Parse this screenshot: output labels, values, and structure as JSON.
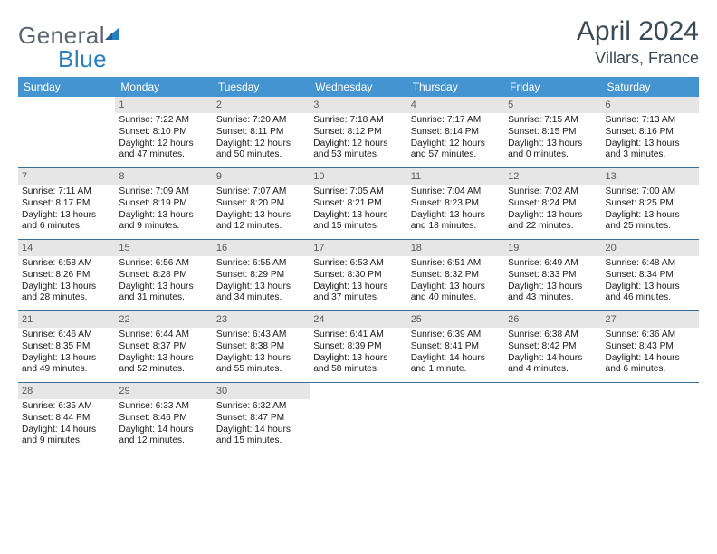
{
  "brand": {
    "word1": "General",
    "word2": "Blue"
  },
  "title": "April 2024",
  "location": "Villars, France",
  "colors": {
    "header_bg": "#4494d1",
    "header_text": "#ffffff",
    "row_border": "#3a6f99",
    "daynum_bg": "#e6e6e6",
    "daynum_text": "#5a5a5a",
    "body_text": "#1a1a1a",
    "title_text": "#3a4a56",
    "logo_gray": "#5a6670",
    "logo_blue": "#2a7fbf"
  },
  "day_headers": [
    "Sunday",
    "Monday",
    "Tuesday",
    "Wednesday",
    "Thursday",
    "Friday",
    "Saturday"
  ],
  "weeks": [
    [
      {
        "day": "",
        "sunrise": "",
        "sunset": "",
        "daylight": ""
      },
      {
        "day": "1",
        "sunrise": "Sunrise: 7:22 AM",
        "sunset": "Sunset: 8:10 PM",
        "daylight": "Daylight: 12 hours and 47 minutes."
      },
      {
        "day": "2",
        "sunrise": "Sunrise: 7:20 AM",
        "sunset": "Sunset: 8:11 PM",
        "daylight": "Daylight: 12 hours and 50 minutes."
      },
      {
        "day": "3",
        "sunrise": "Sunrise: 7:18 AM",
        "sunset": "Sunset: 8:12 PM",
        "daylight": "Daylight: 12 hours and 53 minutes."
      },
      {
        "day": "4",
        "sunrise": "Sunrise: 7:17 AM",
        "sunset": "Sunset: 8:14 PM",
        "daylight": "Daylight: 12 hours and 57 minutes."
      },
      {
        "day": "5",
        "sunrise": "Sunrise: 7:15 AM",
        "sunset": "Sunset: 8:15 PM",
        "daylight": "Daylight: 13 hours and 0 minutes."
      },
      {
        "day": "6",
        "sunrise": "Sunrise: 7:13 AM",
        "sunset": "Sunset: 8:16 PM",
        "daylight": "Daylight: 13 hours and 3 minutes."
      }
    ],
    [
      {
        "day": "7",
        "sunrise": "Sunrise: 7:11 AM",
        "sunset": "Sunset: 8:17 PM",
        "daylight": "Daylight: 13 hours and 6 minutes."
      },
      {
        "day": "8",
        "sunrise": "Sunrise: 7:09 AM",
        "sunset": "Sunset: 8:19 PM",
        "daylight": "Daylight: 13 hours and 9 minutes."
      },
      {
        "day": "9",
        "sunrise": "Sunrise: 7:07 AM",
        "sunset": "Sunset: 8:20 PM",
        "daylight": "Daylight: 13 hours and 12 minutes."
      },
      {
        "day": "10",
        "sunrise": "Sunrise: 7:05 AM",
        "sunset": "Sunset: 8:21 PM",
        "daylight": "Daylight: 13 hours and 15 minutes."
      },
      {
        "day": "11",
        "sunrise": "Sunrise: 7:04 AM",
        "sunset": "Sunset: 8:23 PM",
        "daylight": "Daylight: 13 hours and 18 minutes."
      },
      {
        "day": "12",
        "sunrise": "Sunrise: 7:02 AM",
        "sunset": "Sunset: 8:24 PM",
        "daylight": "Daylight: 13 hours and 22 minutes."
      },
      {
        "day": "13",
        "sunrise": "Sunrise: 7:00 AM",
        "sunset": "Sunset: 8:25 PM",
        "daylight": "Daylight: 13 hours and 25 minutes."
      }
    ],
    [
      {
        "day": "14",
        "sunrise": "Sunrise: 6:58 AM",
        "sunset": "Sunset: 8:26 PM",
        "daylight": "Daylight: 13 hours and 28 minutes."
      },
      {
        "day": "15",
        "sunrise": "Sunrise: 6:56 AM",
        "sunset": "Sunset: 8:28 PM",
        "daylight": "Daylight: 13 hours and 31 minutes."
      },
      {
        "day": "16",
        "sunrise": "Sunrise: 6:55 AM",
        "sunset": "Sunset: 8:29 PM",
        "daylight": "Daylight: 13 hours and 34 minutes."
      },
      {
        "day": "17",
        "sunrise": "Sunrise: 6:53 AM",
        "sunset": "Sunset: 8:30 PM",
        "daylight": "Daylight: 13 hours and 37 minutes."
      },
      {
        "day": "18",
        "sunrise": "Sunrise: 6:51 AM",
        "sunset": "Sunset: 8:32 PM",
        "daylight": "Daylight: 13 hours and 40 minutes."
      },
      {
        "day": "19",
        "sunrise": "Sunrise: 6:49 AM",
        "sunset": "Sunset: 8:33 PM",
        "daylight": "Daylight: 13 hours and 43 minutes."
      },
      {
        "day": "20",
        "sunrise": "Sunrise: 6:48 AM",
        "sunset": "Sunset: 8:34 PM",
        "daylight": "Daylight: 13 hours and 46 minutes."
      }
    ],
    [
      {
        "day": "21",
        "sunrise": "Sunrise: 6:46 AM",
        "sunset": "Sunset: 8:35 PM",
        "daylight": "Daylight: 13 hours and 49 minutes."
      },
      {
        "day": "22",
        "sunrise": "Sunrise: 6:44 AM",
        "sunset": "Sunset: 8:37 PM",
        "daylight": "Daylight: 13 hours and 52 minutes."
      },
      {
        "day": "23",
        "sunrise": "Sunrise: 6:43 AM",
        "sunset": "Sunset: 8:38 PM",
        "daylight": "Daylight: 13 hours and 55 minutes."
      },
      {
        "day": "24",
        "sunrise": "Sunrise: 6:41 AM",
        "sunset": "Sunset: 8:39 PM",
        "daylight": "Daylight: 13 hours and 58 minutes."
      },
      {
        "day": "25",
        "sunrise": "Sunrise: 6:39 AM",
        "sunset": "Sunset: 8:41 PM",
        "daylight": "Daylight: 14 hours and 1 minute."
      },
      {
        "day": "26",
        "sunrise": "Sunrise: 6:38 AM",
        "sunset": "Sunset: 8:42 PM",
        "daylight": "Daylight: 14 hours and 4 minutes."
      },
      {
        "day": "27",
        "sunrise": "Sunrise: 6:36 AM",
        "sunset": "Sunset: 8:43 PM",
        "daylight": "Daylight: 14 hours and 6 minutes."
      }
    ],
    [
      {
        "day": "28",
        "sunrise": "Sunrise: 6:35 AM",
        "sunset": "Sunset: 8:44 PM",
        "daylight": "Daylight: 14 hours and 9 minutes."
      },
      {
        "day": "29",
        "sunrise": "Sunrise: 6:33 AM",
        "sunset": "Sunset: 8:46 PM",
        "daylight": "Daylight: 14 hours and 12 minutes."
      },
      {
        "day": "30",
        "sunrise": "Sunrise: 6:32 AM",
        "sunset": "Sunset: 8:47 PM",
        "daylight": "Daylight: 14 hours and 15 minutes."
      },
      {
        "day": "",
        "sunrise": "",
        "sunset": "",
        "daylight": ""
      },
      {
        "day": "",
        "sunrise": "",
        "sunset": "",
        "daylight": ""
      },
      {
        "day": "",
        "sunrise": "",
        "sunset": "",
        "daylight": ""
      },
      {
        "day": "",
        "sunrise": "",
        "sunset": "",
        "daylight": ""
      }
    ]
  ]
}
